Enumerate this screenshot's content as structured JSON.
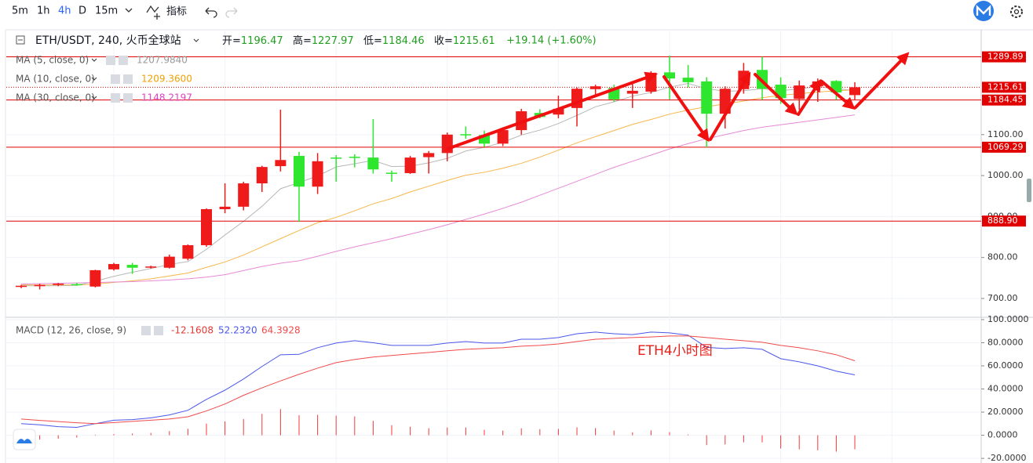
{
  "toolbar": {
    "intervals": [
      "5m",
      "1h",
      "4h",
      "D",
      "15m"
    ],
    "indicators": "指标"
  },
  "chart_data": [
    {
      "type": "candlestick",
      "title": "ETH/USDT, 240, 火币全球站",
      "ohlc_labels": [
        {
          "label": "开=",
          "value": "1196.47"
        },
        {
          "label": "高=",
          "value": "1227.97"
        },
        {
          "label": "低=",
          "value": "1184.46"
        },
        {
          "label": "收=",
          "value": "1215.61"
        }
      ],
      "change": "+19.14 (+1.60%)",
      "up_color": "#ef1b1b",
      "down_color": "#2ee62e",
      "open": [
        729,
        730,
        733,
        735,
        729,
        771,
        782,
        776,
        775,
        797,
        830,
        918,
        924,
        981,
        1023,
        1048,
        973,
        1044,
        1046,
        1044,
        1007,
        1006,
        1045,
        1055,
        1101,
        1099,
        1078,
        1111,
        1153,
        1149,
        1165,
        1211,
        1214,
        1200,
        1205,
        1252,
        1239,
        1230,
        1151,
        1211,
        1258,
        1222,
        1187,
        1218,
        1231,
        1196.47
      ],
      "high": [
        733,
        736,
        738,
        738,
        770,
        787,
        787,
        780,
        807,
        832,
        920,
        981,
        985,
        1024,
        1161,
        1058,
        1055,
        1050,
        1052,
        1138,
        1012,
        1048,
        1060,
        1105,
        1120,
        1110,
        1118,
        1163,
        1162,
        1195,
        1215,
        1222,
        1222,
        1230,
        1255,
        1293,
        1270,
        1240,
        1218,
        1275,
        1290,
        1240,
        1232,
        1237,
        1233,
        1227.97
      ],
      "low": [
        725,
        722,
        730,
        731,
        727,
        768,
        760,
        773,
        773,
        793,
        826,
        908,
        915,
        960,
        1010,
        887,
        955,
        985,
        1020,
        1005,
        985,
        1004,
        1005,
        1035,
        1090,
        1070,
        1072,
        1100,
        1140,
        1140,
        1120,
        1195,
        1180,
        1165,
        1200,
        1186,
        1215,
        1069,
        1115,
        1200,
        1185,
        1175,
        1160,
        1180,
        1185,
        1184.46
      ],
      "close": [
        731,
        733,
        736,
        733,
        769,
        784,
        775,
        778,
        802,
        830,
        918,
        924,
        981,
        1021,
        1038,
        973,
        1035,
        1042,
        1044,
        1015,
        1005,
        1044,
        1055,
        1100,
        1099,
        1078,
        1111,
        1157,
        1143,
        1163,
        1212,
        1218,
        1186,
        1207,
        1251,
        1237,
        1228,
        1151,
        1212,
        1256,
        1212,
        1189,
        1220,
        1230,
        1203,
        1215.61
      ],
      "overlays": [
        {
          "name": "MA (5, close, 0)",
          "color": "#b8b8b8",
          "legend_color": "#9a9a9a",
          "last_label": "1207.9840",
          "values": [
            731,
            731,
            731,
            732,
            742,
            754,
            764,
            773,
            783,
            790,
            820,
            855,
            888,
            925,
            968,
            983,
            999,
            1021,
            1029,
            1037,
            1022,
            1023,
            1031,
            1042,
            1060,
            1069,
            1081,
            1099,
            1111,
            1127,
            1147,
            1168,
            1180,
            1194,
            1203,
            1216,
            1225,
            1212,
            1206,
            1207,
            1212,
            1207,
            1212,
            1217,
            1212,
            1207.984
          ]
        },
        {
          "name": "MA (10, close, 0)",
          "color": "#f7b64a",
          "legend_color": "#f0a000",
          "last_label": "1209.3600",
          "values": [
            733,
            733,
            733,
            733,
            735,
            739,
            743,
            748,
            755,
            762,
            776,
            789,
            806,
            826,
            846,
            866,
            885,
            898,
            914,
            931,
            944,
            960,
            974,
            988,
            1001,
            1008,
            1018,
            1030,
            1045,
            1062,
            1080,
            1095,
            1110,
            1125,
            1137,
            1150,
            1160,
            1168,
            1175,
            1182,
            1190,
            1196,
            1200,
            1204,
            1207,
            1209.36
          ]
        },
        {
          "name": "MA (30, close, 0)",
          "color": "#e68ad6",
          "legend_color": "#e040c0",
          "last_label": "1148.2197",
          "values": [
            735,
            736,
            737,
            738,
            739,
            740,
            741,
            743,
            745,
            748,
            752,
            758,
            768,
            778,
            786,
            792,
            803,
            815,
            826,
            836,
            846,
            857,
            868,
            880,
            893,
            906,
            920,
            935,
            952,
            969,
            986,
            1003,
            1020,
            1035,
            1050,
            1065,
            1078,
            1090,
            1100,
            1110,
            1118,
            1124,
            1130,
            1136,
            1142,
            1148.2197
          ]
        }
      ],
      "price_lines": [
        {
          "value": 1289.89,
          "label": "1289.89",
          "style": "solid"
        },
        {
          "value": 1215.61,
          "label": "1215.61",
          "style": "dotted"
        },
        {
          "value": 1184.45,
          "label": "1184.45",
          "style": "solid"
        },
        {
          "value": 1069.29,
          "label": "1069.29",
          "style": "solid"
        },
        {
          "value": 888.9,
          "label": "888.90",
          "style": "solid"
        }
      ],
      "line_color": "#e00000",
      "ylim": [
        654,
        1356
      ],
      "yticks": [
        {
          "value": 700,
          "label": "700.00"
        },
        {
          "value": 800,
          "label": "800.00"
        },
        {
          "value": 900,
          "label": "900.00"
        },
        {
          "value": 1000,
          "label": "1000.00"
        },
        {
          "value": 1100,
          "label": "1100.00"
        }
      ],
      "grid": true
    },
    {
      "type": "macd",
      "title": "MACD (12, 26, close, 9)",
      "annotation": "ETH4小时图",
      "histogram": {
        "color": "#ef3b3b",
        "legend_color": "#e53935",
        "last_label": "-12.1608",
        "values": [
          -4,
          -3.8,
          -3,
          -2,
          0.5,
          1,
          1.5,
          2,
          3.6,
          5.6,
          10,
          12,
          14,
          18.5,
          22.6,
          17.3,
          17.7,
          16.9,
          16.3,
          12.4,
          8.7,
          7.4,
          6.1,
          6.7,
          6.7,
          4.7,
          4,
          6,
          5.3,
          5.5,
          6.8,
          6.2,
          4,
          2.5,
          4.2,
          2.7,
          0.7,
          -8.5,
          -8,
          -6.1,
          -6.1,
          -11.5,
          -12.2,
          -13,
          -14.2,
          -12.1608
        ]
      },
      "series": [
        {
          "color": "#4a57e8",
          "last_label": "52.2320",
          "values": [
            10,
            9,
            7.4,
            6.8,
            10,
            13,
            13.5,
            15,
            17.6,
            21.6,
            31,
            39,
            48.6,
            59.5,
            69.6,
            70,
            75.7,
            79.7,
            81.8,
            80,
            77.7,
            77.7,
            77.7,
            79.7,
            81,
            79.7,
            79.7,
            83,
            83,
            84.5,
            87.8,
            89.2,
            87.8,
            87,
            89.2,
            88.5,
            86.5,
            76,
            75,
            75.7,
            74.3,
            66.2,
            63.5,
            60,
            55.4,
            52.232
          ]
        },
        {
          "color": "#f04a4a",
          "last_label": "64.3928",
          "values": [
            14,
            12.8,
            11.8,
            10.8,
            10,
            11,
            12,
            13,
            14,
            16,
            21,
            27,
            34.5,
            41,
            47,
            52.7,
            58,
            62.8,
            65.5,
            67.6,
            69,
            70.3,
            71.6,
            73,
            74.3,
            75,
            75.7,
            77,
            77.7,
            79,
            81,
            83,
            83.8,
            84.5,
            85,
            85.8,
            85.8,
            84.5,
            83,
            81.8,
            80.4,
            77.7,
            75.7,
            73,
            69.6,
            64.3928
          ]
        }
      ],
      "ylim": [
        -24,
        102
      ],
      "yticks": [
        {
          "value": -20,
          "label": "-20.0000"
        },
        {
          "value": 0,
          "label": "0.0000"
        },
        {
          "value": 20,
          "label": "20.0000"
        },
        {
          "value": 40,
          "label": "40.0000"
        },
        {
          "value": 60,
          "label": "60.0000"
        },
        {
          "value": 80,
          "label": "80.0000"
        },
        {
          "value": 100,
          "label": "100.0000"
        }
      ],
      "grid": true
    }
  ]
}
